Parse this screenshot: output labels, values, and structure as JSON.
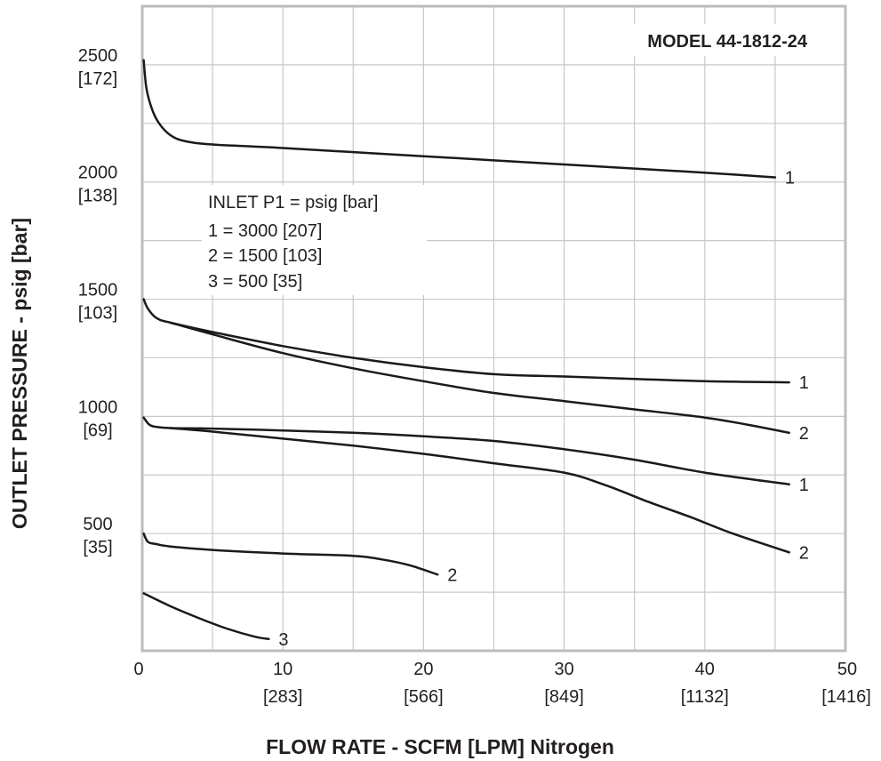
{
  "chart_data": {
    "type": "line",
    "title": "MODEL 44-1812-24",
    "xlabel": "FLOW RATE - SCFM [LPM] Nitrogen",
    "ylabel": "OUTLET PRESSURE - psig [bar]",
    "xlim": [
      0,
      50
    ],
    "ylim": [
      0,
      2750
    ],
    "grid": true,
    "x_ticks": [
      {
        "value": 0,
        "label": "0",
        "sublabel": ""
      },
      {
        "value": 10,
        "label": "10",
        "sublabel": "[283]"
      },
      {
        "value": 20,
        "label": "20",
        "sublabel": "[566]"
      },
      {
        "value": 30,
        "label": "30",
        "sublabel": "[849]"
      },
      {
        "value": 40,
        "label": "40",
        "sublabel": "[1132]"
      },
      {
        "value": 50,
        "label": "50",
        "sublabel": "[1416]"
      }
    ],
    "y_ticks": [
      {
        "value": 500,
        "label": "500",
        "sublabel": "[35]"
      },
      {
        "value": 1000,
        "label": "1000",
        "sublabel": "[69]"
      },
      {
        "value": 1500,
        "label": "1500",
        "sublabel": "[103]"
      },
      {
        "value": 2000,
        "label": "2000",
        "sublabel": "[138]"
      },
      {
        "value": 2500,
        "label": "2500",
        "sublabel": "[172]"
      }
    ],
    "legend": {
      "position": "upper-left",
      "title": "INLET P1 = psig [bar]",
      "entries": [
        "1 = 3000 [207]",
        "2 = 1500 [103]",
        "3 = 500 [35]"
      ]
    },
    "series": [
      {
        "label": "1",
        "x": [
          0.1,
          0.3,
          0.7,
          1.2,
          2,
          3,
          5,
          10,
          20,
          30,
          40,
          45
        ],
        "y": [
          2520,
          2400,
          2310,
          2250,
          2200,
          2175,
          2160,
          2145,
          2110,
          2075,
          2040,
          2020
        ]
      },
      {
        "label": "1",
        "x": [
          0.1,
          0.4,
          1,
          2,
          5,
          10,
          15,
          20,
          25,
          30,
          35,
          40,
          46
        ],
        "y": [
          1500,
          1460,
          1420,
          1400,
          1360,
          1300,
          1250,
          1210,
          1180,
          1170,
          1160,
          1150,
          1145
        ]
      },
      {
        "label": "2",
        "x": [
          2,
          5,
          10,
          15,
          20,
          25,
          30,
          35,
          40,
          43,
          46
        ],
        "y": [
          1400,
          1350,
          1270,
          1205,
          1150,
          1100,
          1065,
          1030,
          995,
          965,
          930
        ]
      },
      {
        "label": "1",
        "x": [
          0.1,
          0.5,
          1,
          2,
          5,
          10,
          15,
          20,
          25,
          30,
          35,
          40,
          46
        ],
        "y": [
          995,
          965,
          955,
          950,
          948,
          940,
          930,
          915,
          895,
          860,
          815,
          760,
          710
        ]
      },
      {
        "label": "2",
        "x": [
          2,
          5,
          10,
          15,
          20,
          25,
          30,
          33,
          36,
          39,
          42,
          46
        ],
        "y": [
          950,
          935,
          905,
          875,
          840,
          800,
          760,
          705,
          635,
          570,
          500,
          420
        ]
      },
      {
        "label": "2",
        "x": [
          0.1,
          0.4,
          1,
          2,
          5,
          10,
          15,
          17,
          19,
          21
        ],
        "y": [
          500,
          465,
          455,
          445,
          430,
          415,
          405,
          390,
          365,
          325
        ]
      },
      {
        "label": "3",
        "x": [
          0.1,
          2,
          4,
          6,
          8,
          9
        ],
        "y": [
          245,
          190,
          140,
          95,
          60,
          50
        ]
      }
    ]
  }
}
